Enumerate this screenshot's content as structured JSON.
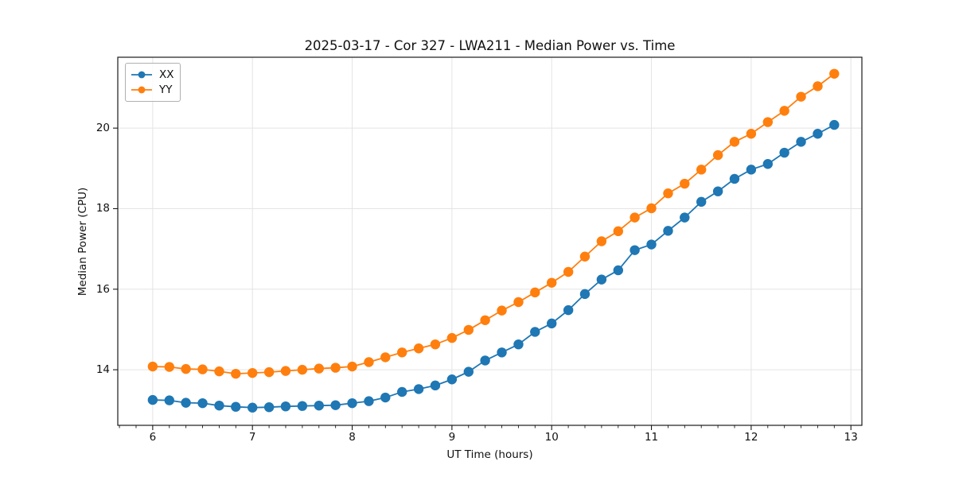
{
  "chart_data": {
    "type": "line",
    "title": "2025-03-17 - Cor 327 - LWA211 - Median Power vs. Time",
    "xlabel": "UT Time (hours)",
    "ylabel": "Median Power (CPU)",
    "xlim": [
      5.65,
      13.11
    ],
    "ylim": [
      12.62,
      21.76
    ],
    "x_major_ticks": [
      6,
      7,
      8,
      9,
      10,
      11,
      12,
      13
    ],
    "x_tick_labels": [
      "6",
      "7",
      "8",
      "9",
      "10",
      "11",
      "12",
      "13"
    ],
    "x_minor_tick_interval": 0.1667,
    "y_major_ticks": [
      14,
      16,
      18,
      20
    ],
    "y_tick_labels": [
      "14",
      "16",
      "18",
      "20"
    ],
    "grid": true,
    "legend_position": "upper-left",
    "marker": "circle",
    "x": [
      6.0,
      6.167,
      6.333,
      6.5,
      6.667,
      6.833,
      7.0,
      7.167,
      7.333,
      7.5,
      7.667,
      7.833,
      8.0,
      8.167,
      8.333,
      8.5,
      8.667,
      8.833,
      9.0,
      9.167,
      9.333,
      9.5,
      9.667,
      9.833,
      10.0,
      10.167,
      10.333,
      10.5,
      10.667,
      10.833,
      11.0,
      11.167,
      11.333,
      11.5,
      11.667,
      11.833,
      12.0,
      12.167,
      12.333,
      12.5,
      12.667,
      12.833
    ],
    "series": [
      {
        "name": "XX",
        "color": "#1f77b4",
        "values": [
          13.25,
          13.24,
          13.18,
          13.17,
          13.11,
          13.08,
          13.06,
          13.07,
          13.09,
          13.1,
          13.11,
          13.12,
          13.17,
          13.22,
          13.31,
          13.45,
          13.52,
          13.61,
          13.76,
          13.95,
          14.23,
          14.43,
          14.63,
          14.94,
          15.15,
          15.48,
          15.88,
          16.24,
          16.47,
          16.97,
          17.11,
          17.45,
          17.78,
          18.17,
          18.43,
          18.74,
          18.97,
          19.11,
          19.39,
          19.66,
          19.86,
          20.08
        ]
      },
      {
        "name": "YY",
        "color": "#ff7f0e",
        "values": [
          14.08,
          14.07,
          14.02,
          14.01,
          13.96,
          13.9,
          13.92,
          13.94,
          13.97,
          14.0,
          14.03,
          14.05,
          14.08,
          14.19,
          14.31,
          14.43,
          14.53,
          14.63,
          14.79,
          14.99,
          15.23,
          15.47,
          15.68,
          15.92,
          16.16,
          16.43,
          16.81,
          17.19,
          17.44,
          17.78,
          18.01,
          18.38,
          18.62,
          18.97,
          19.33,
          19.66,
          19.86,
          20.15,
          20.43,
          20.78,
          21.04,
          21.35
        ]
      }
    ]
  }
}
